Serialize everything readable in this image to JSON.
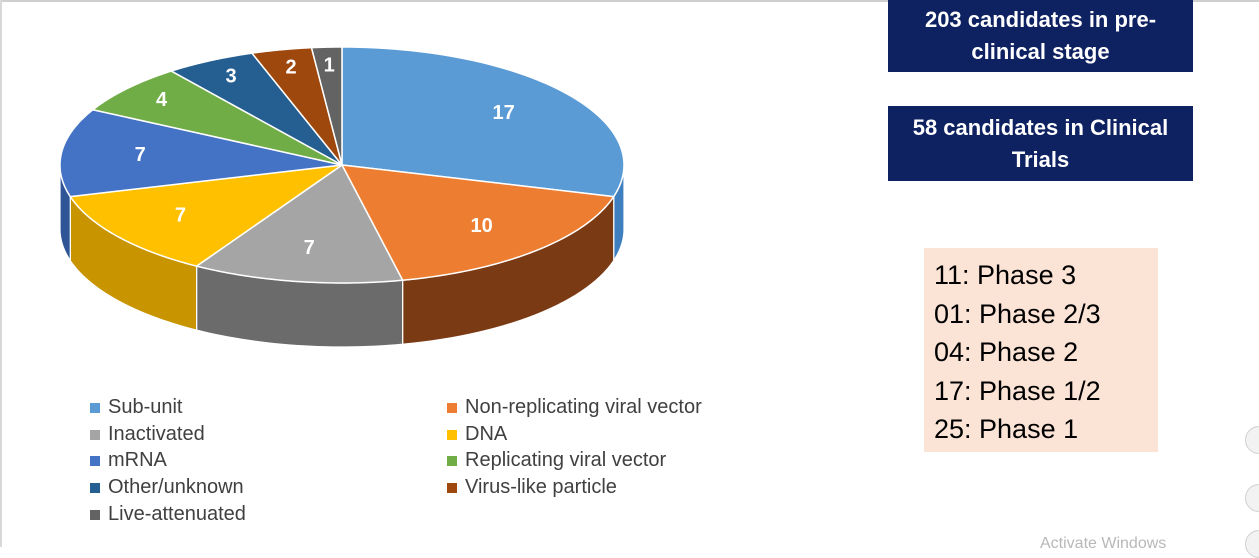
{
  "chart_data": {
    "type": "pie",
    "title": "",
    "slices": [
      {
        "label": "Sub-unit",
        "value": 17,
        "color": "#5b9bd5",
        "side": "#3f7fbf"
      },
      {
        "label": "Non-replicating viral vector",
        "value": 10,
        "color": "#ed7d31",
        "side": "#7a3a14"
      },
      {
        "label": "Inactivated",
        "value": 7,
        "color": "#a5a5a5",
        "side": "#6b6b6b"
      },
      {
        "label": "DNA",
        "value": 7,
        "color": "#ffc000",
        "side": "#c89400"
      },
      {
        "label": "mRNA",
        "value": 7,
        "color": "#4472c4",
        "side": "#2f5597"
      },
      {
        "label": "Replicating viral vector",
        "value": 4,
        "color": "#70ad47",
        "side": "#4e7f31"
      },
      {
        "label": "Other/unknown",
        "value": 3,
        "color": "#255e91",
        "side": "#1a4367"
      },
      {
        "label": "Virus-like particle",
        "value": 2,
        "color": "#9e480e",
        "side": "#6a300a"
      },
      {
        "label": "Live-attenuated",
        "value": 1,
        "color": "#636363",
        "side": "#444444"
      }
    ],
    "data_labels": [
      "17",
      "10",
      "7",
      "7",
      "7",
      "4",
      "3",
      "2",
      "1"
    ],
    "legend_position": "bottom"
  },
  "legend": {
    "items": [
      {
        "label": "Sub-unit",
        "color": "#5b9bd5"
      },
      {
        "label": "Non-replicating viral vector",
        "color": "#ed7d31"
      },
      {
        "label": "Inactivated",
        "color": "#a5a5a5"
      },
      {
        "label": "DNA",
        "color": "#ffc000"
      },
      {
        "label": "mRNA",
        "color": "#4472c4"
      },
      {
        "label": "Replicating viral vector",
        "color": "#70ad47"
      },
      {
        "label": "Other/unknown",
        "color": "#255e91"
      },
      {
        "label": "Virus-like particle",
        "color": "#9e480e"
      },
      {
        "label": "Live-attenuated",
        "color": "#636363"
      }
    ]
  },
  "boxes": {
    "preclinical": "203 candidates in pre-clinical stage",
    "clinical": "58 candidates in Clinical Trials"
  },
  "phases": [
    "11: Phase 3",
    "01: Phase 2/3",
    "04: Phase 2",
    "17: Phase 1/2",
    "25: Phase 1"
  ],
  "watermark": "Activate Windows",
  "colors": {
    "box_bg": "#0e2161",
    "phase_bg": "#fbe3d6"
  }
}
